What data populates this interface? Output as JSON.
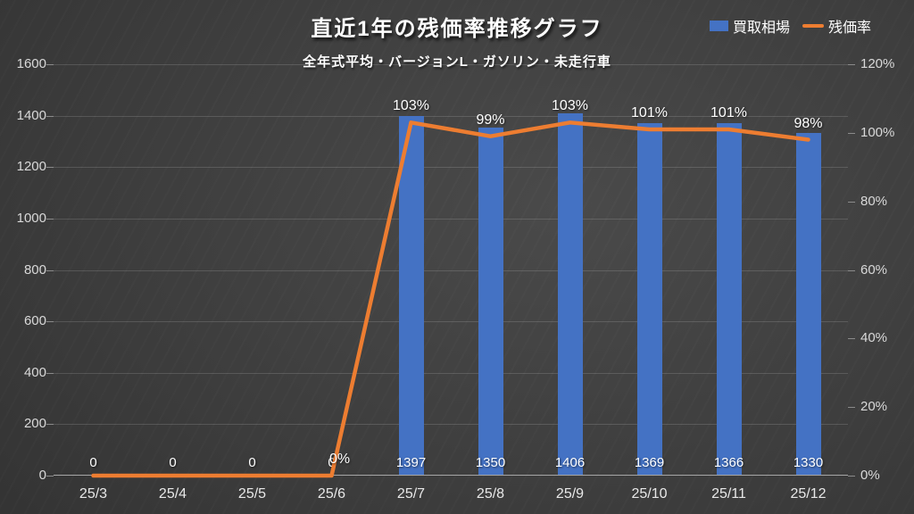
{
  "chart": {
    "title": "直近1年の残価率推移グラフ",
    "subtitle": "全年式平均・バージョンL・ガソリン・未走行車"
  },
  "chart_data": {
    "type": "bar+line",
    "title": "直近1年の残価率推移グラフ",
    "subtitle": "全年式平均・バージョンL・ガソリン・未走行車",
    "categories": [
      "25/3",
      "25/4",
      "25/5",
      "25/6",
      "25/7",
      "25/8",
      "25/9",
      "25/10",
      "25/11",
      "25/12"
    ],
    "series": [
      {
        "name": "買取相場",
        "type": "bar",
        "axis": "left",
        "color": "#4472C4",
        "values": [
          0,
          0,
          0,
          0,
          1397,
          1350,
          1406,
          1369,
          1366,
          1330
        ],
        "labels": [
          "0",
          "0",
          "0",
          "0",
          "1397",
          "1350",
          "1406",
          "1369",
          "1366",
          "1330"
        ]
      },
      {
        "name": "残価率",
        "type": "line",
        "axis": "right",
        "color": "#ED7D31",
        "values": [
          0,
          0,
          0,
          0,
          103,
          99,
          103,
          101,
          101,
          98
        ],
        "labels": [
          "",
          "",
          "",
          "0%",
          "103%",
          "99%",
          "103%",
          "101%",
          "101%",
          "98%"
        ]
      }
    ],
    "left_axis": {
      "min": 0,
      "max": 1600,
      "ticks": [
        "0",
        "200",
        "400",
        "600",
        "800",
        "1000",
        "1200",
        "1400",
        "1600"
      ]
    },
    "right_axis": {
      "min": 0,
      "max": 120,
      "ticks": [
        "0%",
        "20%",
        "40%",
        "60%",
        "80%",
        "100%",
        "120%"
      ]
    },
    "grid": true,
    "legend_position": "top-right",
    "colors": {
      "background_dark": "#2a2a2a",
      "background_light": "#4a4a4a",
      "axis_text": "#d9d9d9",
      "baseline": "#a6a6a6",
      "title_text": "#ffffff"
    }
  }
}
